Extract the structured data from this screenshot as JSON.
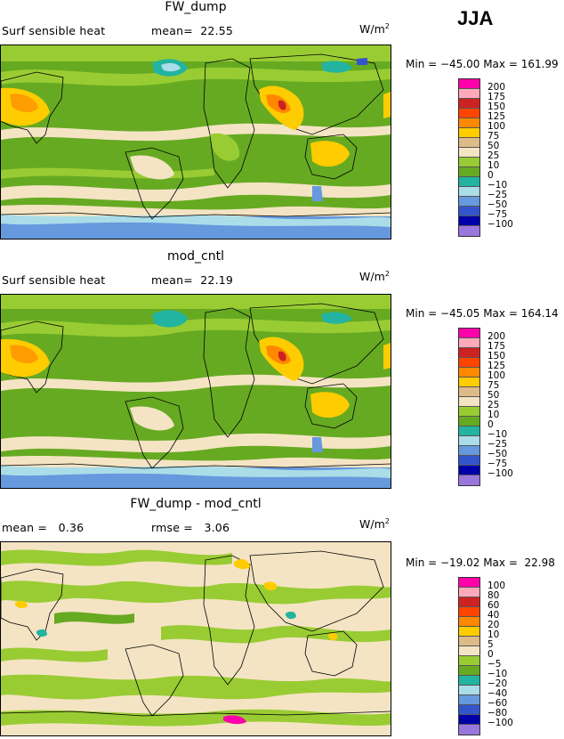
{
  "season": "JJA",
  "units": {
    "base": "W/m",
    "exp": "2"
  },
  "palette": [
    "#ff00aa",
    "#ffaabb",
    "#cc2222",
    "#ff4400",
    "#ff8800",
    "#ffcc00",
    "#ddbb88",
    "#f4e4c4",
    "#99cc33",
    "#66aa22",
    "#22b4a0",
    "#aadde8",
    "#6699dd",
    "#3355cc",
    "#0000aa",
    "#9977dd"
  ],
  "panels": [
    {
      "title": "FW_dump",
      "subtitle_left": "Surf sensible heat",
      "subtitle_right": "mean=  22.55",
      "minmax": "Min = −45.00 Max = 161.99",
      "colorbar_labels": [
        "200",
        "175",
        "150",
        "125",
        "100",
        "75",
        "50",
        "25",
        "10",
        "0",
        "−10",
        "−25",
        "−50",
        "−75",
        "−100"
      ]
    },
    {
      "title": "mod_cntl",
      "subtitle_left": "Surf sensible heat",
      "subtitle_right": "mean=  22.19",
      "minmax": "Min = −45.05 Max = 164.14",
      "colorbar_labels": [
        "200",
        "175",
        "150",
        "125",
        "100",
        "75",
        "50",
        "25",
        "10",
        "0",
        "−10",
        "−25",
        "−50",
        "−75",
        "−100"
      ]
    },
    {
      "title": "FW_dump - mod_cntl",
      "subtitle_left": "mean =   0.36",
      "subtitle_right": "rmse =   3.06",
      "minmax": "Min = −19.02 Max =  22.98",
      "colorbar_labels": [
        "100",
        "80",
        "60",
        "40",
        "20",
        "10",
        "5",
        "0",
        "−5",
        "−10",
        "−20",
        "−40",
        "−60",
        "−80",
        "−100"
      ]
    }
  ]
}
